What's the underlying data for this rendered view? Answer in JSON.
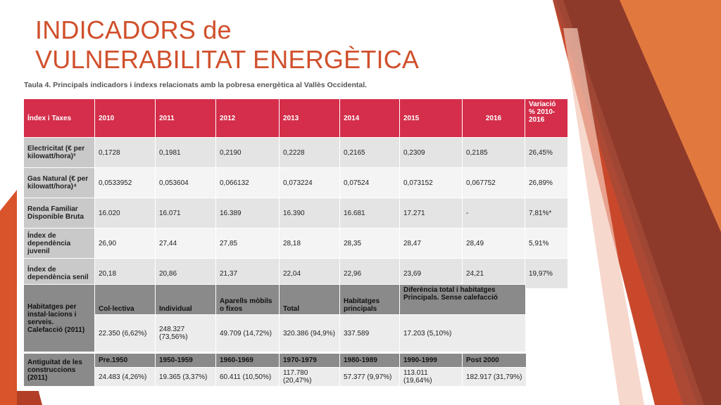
{
  "title": {
    "line1": "INDICADORS de",
    "line2": "VULNERABILITAT ENERGÈTICA"
  },
  "caption": "Taula 4. Principals indicadors i índexs relacionats amb la pobresa energètica al Vallès Occidental.",
  "indicators_table": {
    "headers": [
      "Índex i Taxes",
      "2010",
      "2011",
      "2012",
      "2013",
      "2014",
      "2015",
      "2016",
      "Variació % 2010-2016"
    ],
    "rows": [
      {
        "label": "Electricitat (€ per kilowatt/hora)³",
        "values": [
          "0,1728",
          "0,1981",
          "0,2190",
          "0,2228",
          "0,2165",
          "0,2309",
          "0,2185",
          "26,45%"
        ]
      },
      {
        "label": "Gas Natural (€ per kilowatt/hora)⁴",
        "values": [
          "0,0533952",
          "0,053604",
          "0,066132",
          "0,073224",
          "0,07524",
          "0,073152",
          "0,067752",
          "26,89%"
        ]
      },
      {
        "label": "Renda Familiar Disponible Bruta",
        "values": [
          "16.020",
          "16.071",
          "16.389",
          "16.390",
          "16.681",
          "17.271",
          "-",
          "7,81%*"
        ]
      },
      {
        "label": "Índex de dependència juvenil",
        "values": [
          "26,90",
          "27,44",
          "27,85",
          "28,18",
          "28,35",
          "28,47",
          "28,49",
          "5,91%"
        ]
      },
      {
        "label": "Índex de dependència senil",
        "values": [
          "20,18",
          "20,86",
          "21,37",
          "22,04",
          "22,96",
          "23,69",
          "24,21",
          "19,97%"
        ]
      }
    ]
  },
  "heating_table": {
    "label": "Habitatges per instal·lacions i serveis. Calefacció (2011)",
    "headers": [
      "Col·lectiva",
      "Individual",
      "Aparells mòbils o fixos",
      "Total",
      "Habitatges principals",
      "Diferència total i habitatges Principals. Sense calefacció"
    ],
    "values": [
      "22.350 (6,62%)",
      "248.327 (73,56%)",
      "49.709 (14,72%)",
      "320.386 (94,9%)",
      "337.589",
      "17.203 (5,10%)"
    ]
  },
  "age_table": {
    "label": "Antiguitat de les construccions (2011)",
    "headers": [
      "Pre.1950",
      "1950-1959",
      "1960-1969",
      "1970-1979",
      "1980-1989",
      "1990-1999",
      "Post 2000"
    ],
    "values": [
      "24.483 (4,26%)",
      "19.365 (3,37%)",
      "60.411 (10,50%)",
      "117.780 (20,47%)",
      "57.377 (9,97%)",
      "113.011 (19,64%)",
      "182.917 (31,79%)"
    ]
  },
  "colors": {
    "title": "#d0502c",
    "header_red": "#d42e4a",
    "header_gray": "#8a8a8a",
    "accent_orange": "#d9532b",
    "accent_dark": "#8e3a2a"
  }
}
